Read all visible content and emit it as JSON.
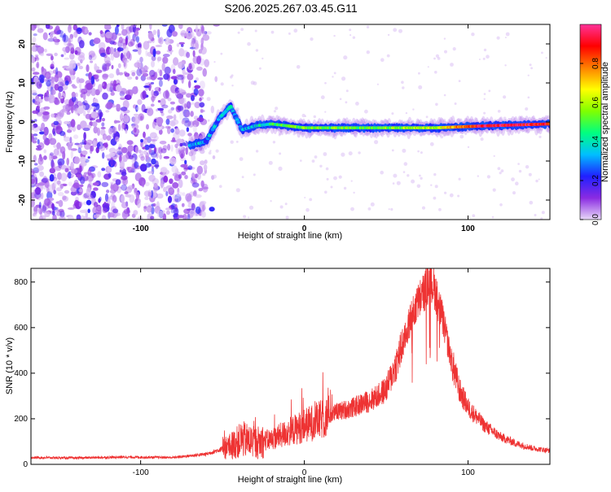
{
  "figure": {
    "title": "S206.2025.267.03.45.G11"
  },
  "chart_data": [
    {
      "type": "heatmap",
      "xlabel": "Height of straight line (km)",
      "ylabel": "Frequency (Hz)",
      "xlim": [
        -167,
        150
      ],
      "ylim": [
        -25,
        25
      ],
      "xticks": [
        -100,
        0,
        100
      ],
      "yticks": [
        -20,
        -10,
        0,
        10,
        20
      ],
      "colorbar": {
        "label": "Normalized spectral amplitude",
        "range": [
          0.0,
          1.0
        ],
        "ticks": [
          0.0,
          0.2,
          0.4,
          0.6,
          0.8
        ],
        "tick_labels": [
          "0.0",
          "0.2",
          "0.4",
          "0.6",
          "0.8"
        ],
        "stops": [
          "#e8d8f8",
          "#8a2be2",
          "#2020ff",
          "#00bfff",
          "#00ff80",
          "#80ff00",
          "#ffff00",
          "#ff8000",
          "#ff0000",
          "#ff3399"
        ]
      },
      "ridge": [
        {
          "x": -70,
          "f": -6,
          "amp": 0.3
        },
        {
          "x": -60,
          "f": -5,
          "amp": 0.3
        },
        {
          "x": -52,
          "f": 1,
          "amp": 0.3
        },
        {
          "x": -45,
          "f": 4,
          "amp": 0.35
        },
        {
          "x": -38,
          "f": -2,
          "amp": 0.3
        },
        {
          "x": -30,
          "f": -1,
          "amp": 0.35
        },
        {
          "x": -20,
          "f": -0.5,
          "amp": 0.45
        },
        {
          "x": 0,
          "f": -1.5,
          "amp": 0.55
        },
        {
          "x": 40,
          "f": -1.5,
          "amp": 0.5
        },
        {
          "x": 80,
          "f": -1.5,
          "amp": 0.6
        },
        {
          "x": 110,
          "f": -1,
          "amp": 0.95
        },
        {
          "x": 150,
          "f": -0.5,
          "amp": 0.9
        }
      ]
    },
    {
      "type": "line",
      "xlabel": "Height of straight line (km)",
      "ylabel": "SNR (10 * v/v)",
      "xlim": [
        -167,
        150
      ],
      "ylim": [
        0,
        860
      ],
      "xticks": [
        -100,
        0,
        100
      ],
      "yticks": [
        0,
        200,
        400,
        600,
        800
      ],
      "color": "#ee3333",
      "series": [
        {
          "name": "SNR",
          "x": [
            -167,
            -140,
            -110,
            -80,
            -60,
            -45,
            -38,
            -30,
            -20,
            -10,
            0,
            10,
            20,
            30,
            40,
            45,
            50,
            55,
            60,
            65,
            70,
            75,
            78,
            80,
            85,
            90,
            95,
            100,
            110,
            120,
            130,
            140,
            150
          ],
          "values": [
            30,
            28,
            32,
            30,
            45,
            80,
            110,
            95,
            110,
            140,
            170,
            195,
            230,
            250,
            280,
            300,
            330,
            420,
            520,
            640,
            720,
            780,
            800,
            760,
            620,
            450,
            320,
            250,
            170,
            120,
            90,
            70,
            60
          ]
        }
      ]
    }
  ]
}
